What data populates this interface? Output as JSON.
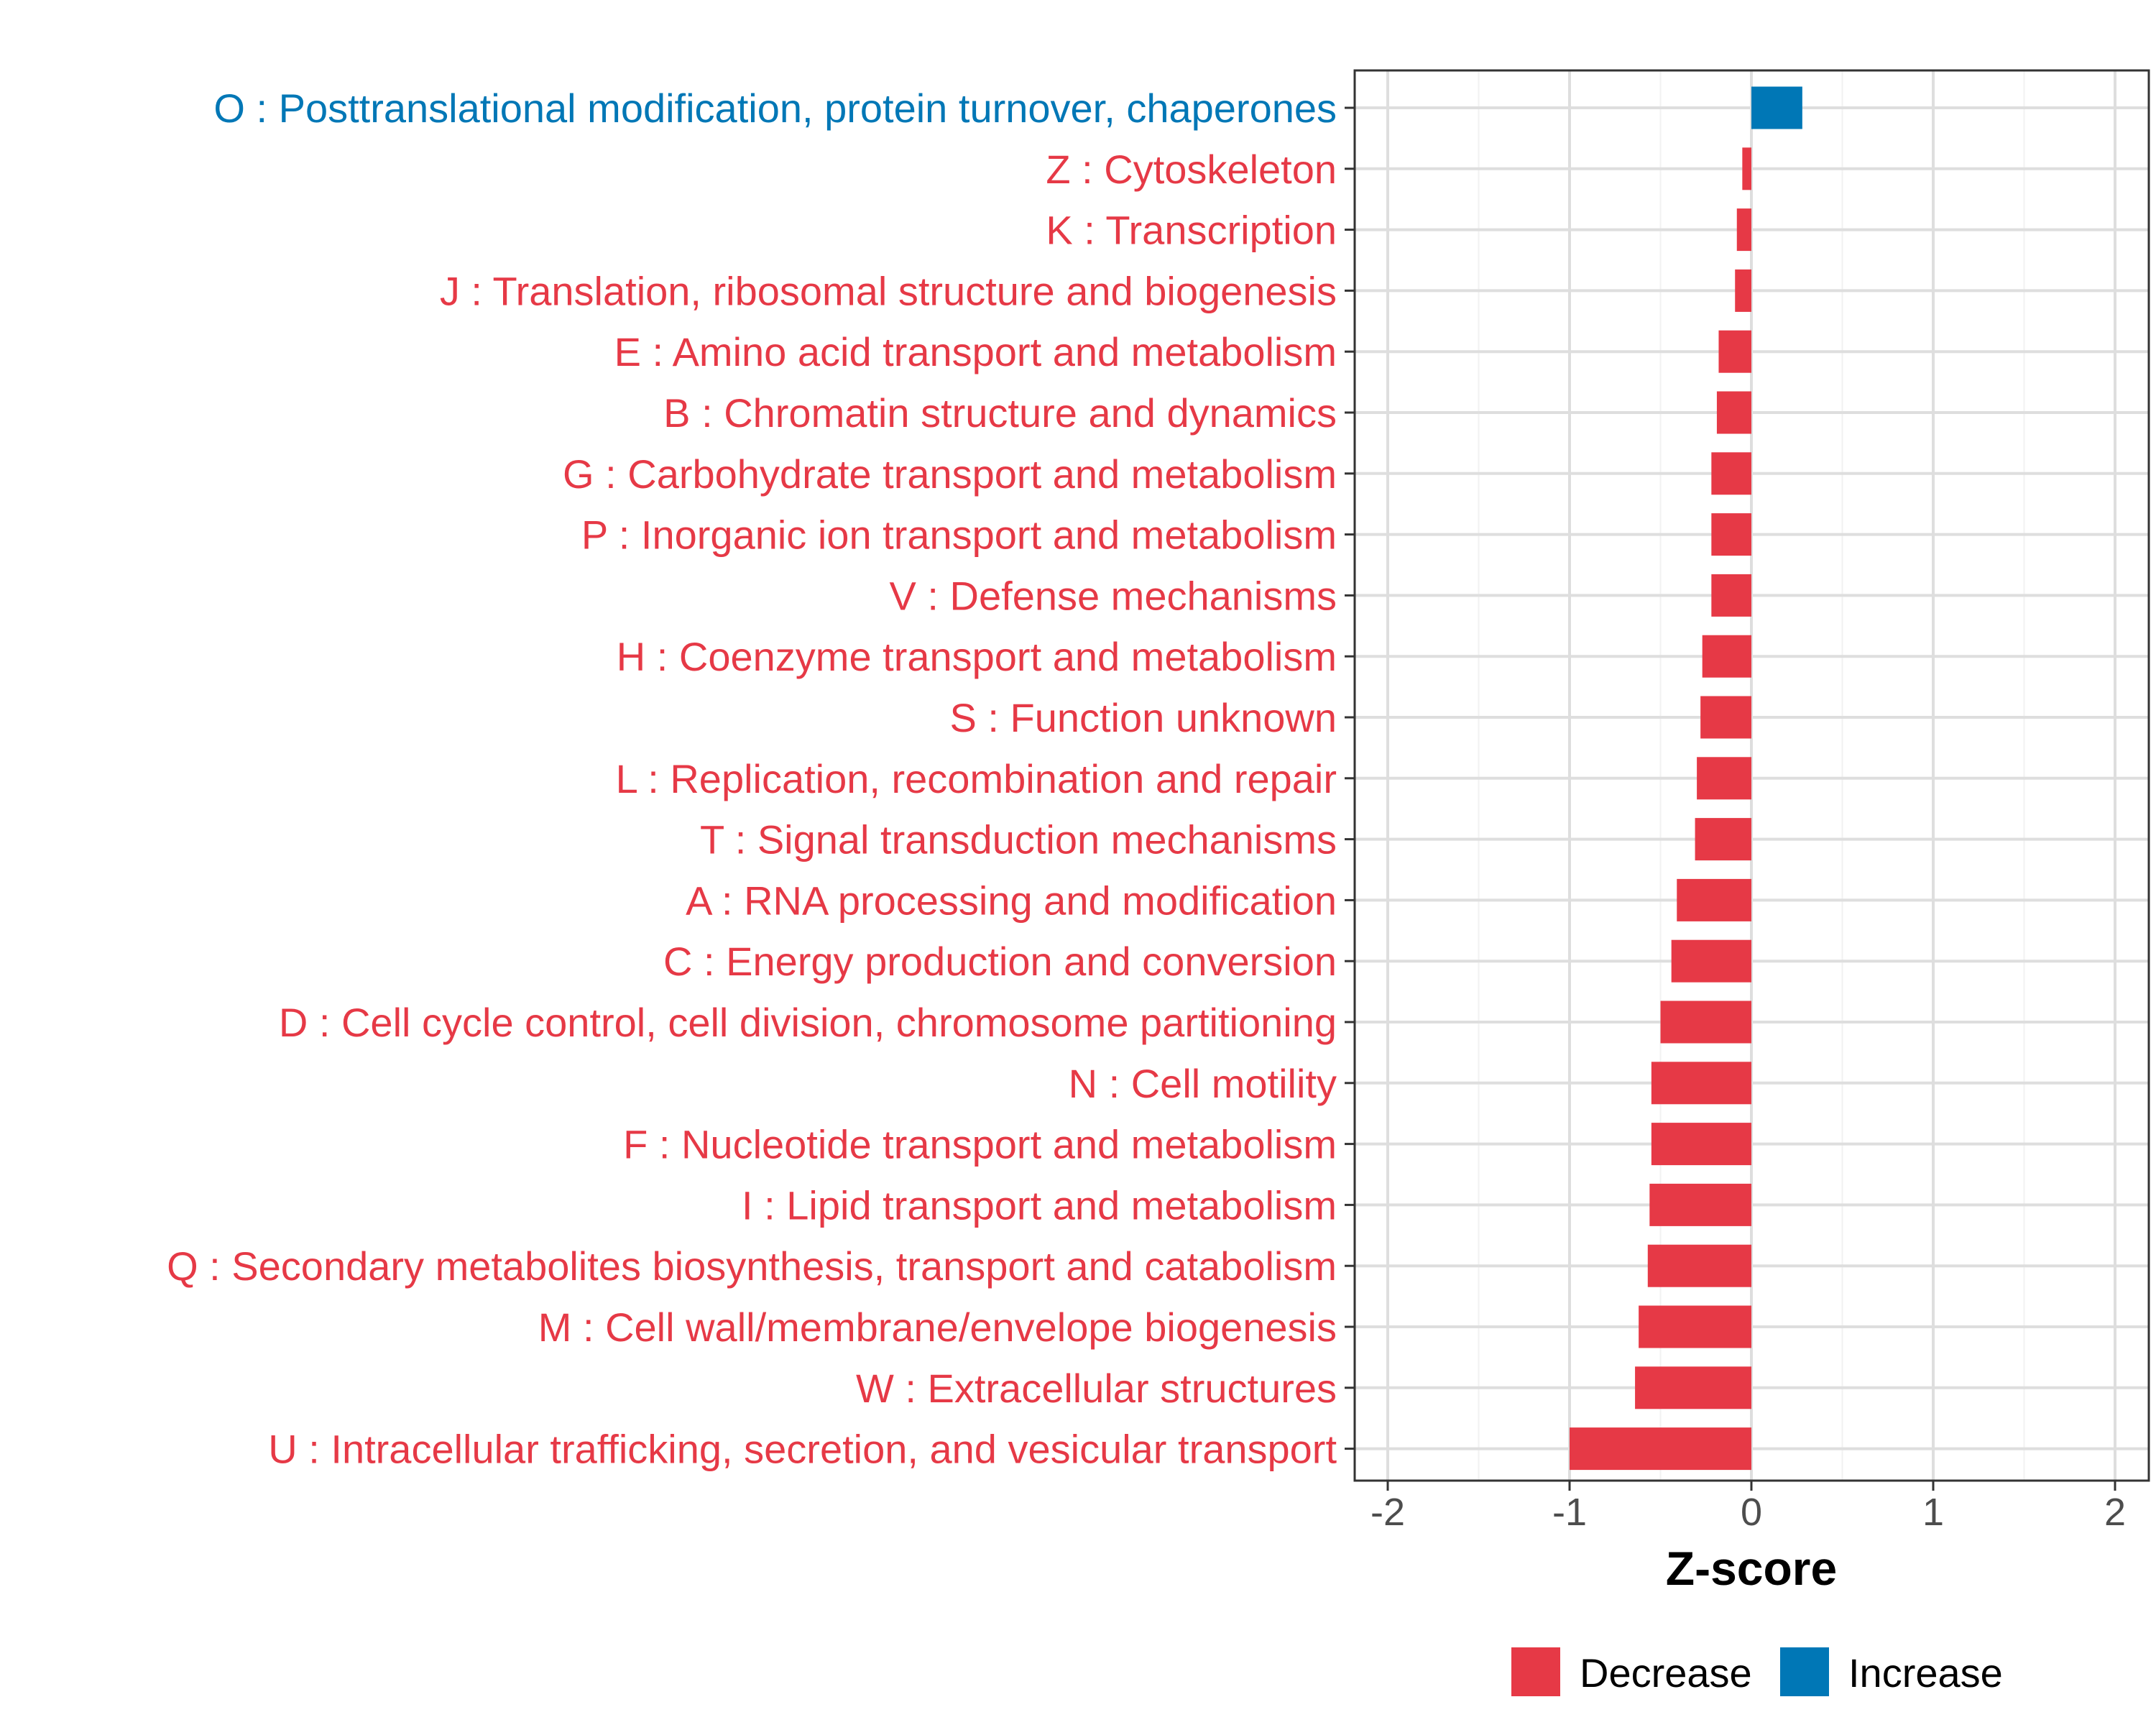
{
  "chart_data": {
    "type": "bar",
    "orientation": "horizontal",
    "title": "",
    "xlabel": "Z-score",
    "ylabel": "",
    "xlim": [
      -2.2,
      2.2
    ],
    "xticks": [
      -2,
      -1,
      0,
      1,
      2
    ],
    "xtick_labels": [
      "-2",
      "-1",
      "0",
      "1",
      "2"
    ],
    "grid": true,
    "legend_position": "bottom",
    "colors": {
      "Decrease": "#e63946",
      "Increase": "#0077b6"
    },
    "categories": [
      "O : Posttranslational modification, protein turnover, chaperones",
      "Z : Cytoskeleton",
      "K : Transcription",
      "J : Translation, ribosomal structure and biogenesis",
      "E : Amino acid transport and metabolism",
      "B : Chromatin structure and dynamics",
      "G : Carbohydrate transport and metabolism",
      "P : Inorganic ion transport and metabolism",
      "V : Defense mechanisms",
      "H : Coenzyme transport and metabolism",
      "S : Function unknown",
      "L : Replication, recombination and repair",
      "T : Signal transduction mechanisms",
      "A : RNA processing and modification",
      "C : Energy production and conversion",
      "D : Cell cycle control, cell division, chromosome partitioning",
      "N : Cell motility",
      "F : Nucleotide transport and metabolism",
      "I : Lipid transport and metabolism",
      "Q : Secondary metabolites biosynthesis, transport and catabolism",
      "M : Cell wall/membrane/envelope biogenesis",
      "W : Extracellular structures",
      "U : Intracellular trafficking, secretion, and vesicular transport"
    ],
    "values": [
      0.28,
      -0.05,
      -0.08,
      -0.09,
      -0.18,
      -0.19,
      -0.22,
      -0.22,
      -0.22,
      -0.27,
      -0.28,
      -0.3,
      -0.31,
      -0.41,
      -0.44,
      -0.5,
      -0.55,
      -0.55,
      -0.56,
      -0.57,
      -0.62,
      -0.64,
      -1.0
    ],
    "groups": [
      "Increase",
      "Decrease",
      "Decrease",
      "Decrease",
      "Decrease",
      "Decrease",
      "Decrease",
      "Decrease",
      "Decrease",
      "Decrease",
      "Decrease",
      "Decrease",
      "Decrease",
      "Decrease",
      "Decrease",
      "Decrease",
      "Decrease",
      "Decrease",
      "Decrease",
      "Decrease",
      "Decrease",
      "Decrease",
      "Decrease"
    ],
    "legend": [
      "Decrease",
      "Increase"
    ]
  }
}
